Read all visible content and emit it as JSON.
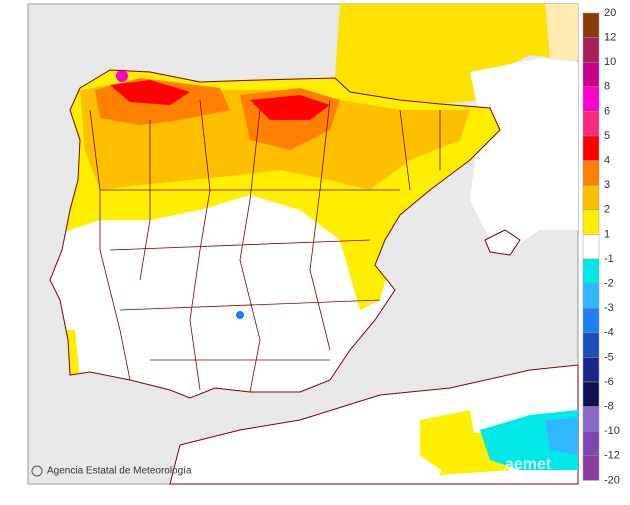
{
  "footer": {
    "agency": "Agencia Estatal de Meteorología",
    "logo": "aemet"
  },
  "legend": {
    "labels": [
      20,
      12,
      10,
      8,
      6,
      5,
      4,
      3,
      2,
      1,
      -1,
      -2,
      -3,
      -4,
      -5,
      -6,
      -8,
      -10,
      -12,
      -20
    ],
    "colors": [
      "#8b3a0a",
      "#a8205a",
      "#c8008c",
      "#ff00cc",
      "#ff2a7f",
      "#ff0000",
      "#ff8000",
      "#ffbe00",
      "#ffee00",
      "#ffffff",
      "#00e8e8",
      "#30b8ff",
      "#1e80f0",
      "#1a4fb8",
      "#18288a",
      "#101055",
      "#8a68c8",
      "#7a48b0",
      "#8a3aa0"
    ]
  }
}
